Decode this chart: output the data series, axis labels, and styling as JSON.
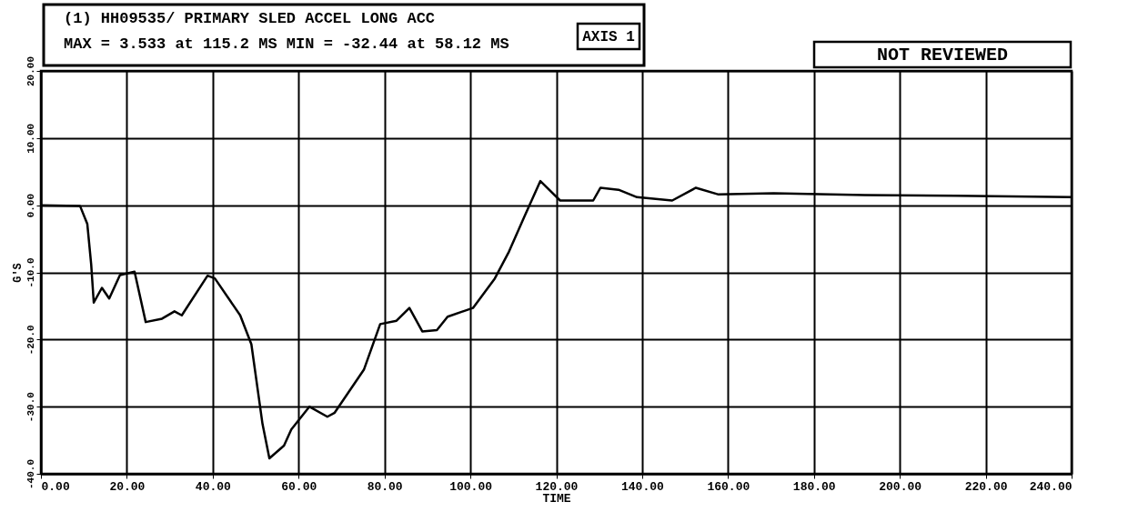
{
  "chart_data": {
    "type": "line",
    "title": "(1) HH09535/ PRIMARY SLED ACCEL LONG ACC",
    "subtitle": "MAX = 3.533 at 115.2 MS   MIN = -32.44 at 58.12 MS",
    "xlabel": "TIME",
    "ylabel": "G'S",
    "annotations": [
      "AXIS 1",
      "NOT REVIEWED"
    ],
    "xlim": [
      0,
      240
    ],
    "ylim": [
      -40,
      20
    ],
    "xticks": [
      {
        "value": 0,
        "label": "0.00"
      },
      {
        "value": 20,
        "label": "20.00"
      },
      {
        "value": 40,
        "label": "40.00"
      },
      {
        "value": 60,
        "label": "60.00"
      },
      {
        "value": 80,
        "label": "80.00"
      },
      {
        "value": 100,
        "label": "100.00"
      },
      {
        "value": 120,
        "label": "120.00"
      },
      {
        "value": 140,
        "label": "140.00"
      },
      {
        "value": 160,
        "label": "160.00"
      },
      {
        "value": 180,
        "label": "180.00"
      },
      {
        "value": 200,
        "label": "200.00"
      },
      {
        "value": 220,
        "label": "220.00"
      },
      {
        "value": 240,
        "label": "240.00"
      }
    ],
    "yticks": [
      {
        "value": 20,
        "label": "20.00"
      },
      {
        "value": 10,
        "label": "10.00"
      },
      {
        "value": 0,
        "label": "0.00"
      },
      {
        "value": -10,
        "label": "-10.0"
      },
      {
        "value": -20,
        "label": "-20.0"
      },
      {
        "value": -30,
        "label": "-30.0"
      },
      {
        "value": -40,
        "label": "-40.0"
      }
    ],
    "grid": true,
    "series": [
      {
        "color": "#000000",
        "x": [
          0,
          9.1,
          10.8,
          11.7,
          12.3,
          14.2,
          15.9,
          18.4,
          21.8,
          24.4,
          28.2,
          31.1,
          32.8,
          38.8,
          40.5,
          46.4,
          49,
          51.6,
          53.2,
          56.6,
          58.3,
          62.5,
          66.7,
          68.4,
          75.2,
          79,
          82.8,
          85.8,
          88.8,
          92.2,
          94.7,
          100.6,
          105.7,
          109,
          112.5,
          116.3,
          120.9,
          128.6,
          130.3,
          134.5,
          138.8,
          147,
          152.5,
          157.8,
          170.6,
          191.8,
          213,
          240
        ],
        "values": [
          0,
          -0.1,
          -2.8,
          -8.8,
          -14.5,
          -12.3,
          -13.9,
          -10.4,
          -9.9,
          -17.4,
          -16.9,
          -15.8,
          -16.4,
          -10.5,
          -10.9,
          -16.4,
          -20.7,
          -32.6,
          -37.7,
          -35.8,
          -33.4,
          -30,
          -31.5,
          -30.9,
          -24.5,
          -17.7,
          -17.2,
          -15.3,
          -18.8,
          -18.6,
          -16.6,
          -15.3,
          -10.9,
          -6.9,
          -1.8,
          3.6,
          0.7,
          0.7,
          2.6,
          2.3,
          1.2,
          0.7,
          2.6,
          1.6,
          1.8,
          1.5,
          1.4,
          1.2
        ]
      }
    ]
  }
}
